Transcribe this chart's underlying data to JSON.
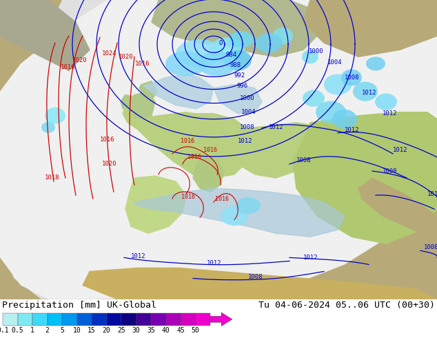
{
  "title_left": "Precipitation [mm] UK-Global",
  "title_right": "Tu 04-06-2024 05..06 UTC (00+30)",
  "colorbar_labels": [
    "0.1",
    "0.5",
    "1",
    "2",
    "5",
    "10",
    "15",
    "20",
    "25",
    "30",
    "35",
    "40",
    "45",
    "50"
  ],
  "colorbar_colors": [
    "#b8f0f0",
    "#80e8f0",
    "#40d8f8",
    "#00c0f8",
    "#0098f0",
    "#0060d8",
    "#0030c0",
    "#0008a0",
    "#100080",
    "#440098",
    "#7800b0",
    "#aa00b8",
    "#d400c0",
    "#f000cc"
  ],
  "arrow_color": "#f000cc",
  "outside_bg": "#b8aa78",
  "forecast_area_color": "#e8e8e8",
  "land_green": "#b8d890",
  "land_gray": "#a8a890",
  "sea_blue": "#8ab8d0",
  "precip_cyan1": "#80e8f8",
  "precip_cyan2": "#50c8e8",
  "precip_blue": "#70b0e0",
  "isobar_blue": "#0000cc",
  "isobar_red": "#cc0000",
  "font_mono": "monospace"
}
